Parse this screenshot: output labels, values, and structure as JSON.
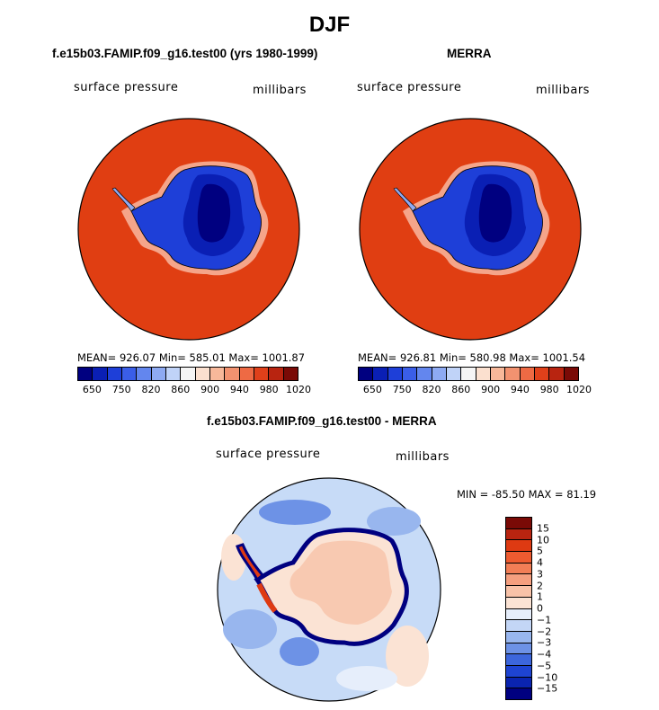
{
  "figure": {
    "title": "DJF"
  },
  "panels": [
    {
      "title": "f.e15b03.FAMIP.f09_g16.test00 (yrs 1980-1999)",
      "field_label": "surface pressure",
      "units_label": "millibars",
      "stats": "MEAN= 926.07   Min= 585.01   Max= 1001.87"
    },
    {
      "title": "MERRA",
      "field_label": "surface pressure",
      "units_label": "millibars",
      "stats": "MEAN= 926.81   Min= 580.98   Max= 1001.54"
    },
    {
      "title": "f.e15b03.FAMIP.f09_g16.test00 - MERRA",
      "field_label": "surface pressure",
      "units_label": "millibars",
      "stats": "MIN = -85.50 MAX =  81.19"
    }
  ],
  "colorbar_abs": {
    "colors": [
      "#000080",
      "#0a1fb4",
      "#1e3fd8",
      "#3a5ee8",
      "#6386ee",
      "#8eaaf2",
      "#c0d3f8",
      "#f5f5f5",
      "#fbe0cf",
      "#f7b89a",
      "#f29270",
      "#ee6a44",
      "#e0401a",
      "#b82410",
      "#7a0a06"
    ],
    "tick_labels": [
      "650",
      "750",
      "820",
      "860",
      "900",
      "940",
      "980",
      "1020"
    ]
  },
  "colorbar_diff": {
    "colors": [
      "#7a0a06",
      "#b82410",
      "#de3a12",
      "#ee5b30",
      "#f27e56",
      "#f59f7f",
      "#f8c2a8",
      "#fbe3d4",
      "#e6eefb",
      "#c3d6f6",
      "#98b6ee",
      "#6d92e6",
      "#3c66dc",
      "#1e44d2",
      "#0a24b0",
      "#000080"
    ],
    "tick_labels": [
      "15",
      "10",
      "5",
      "4",
      "3",
      "2",
      "1",
      "0",
      "−1",
      "−2",
      "−3",
      "−4",
      "−5",
      "−10",
      "−15"
    ]
  }
}
